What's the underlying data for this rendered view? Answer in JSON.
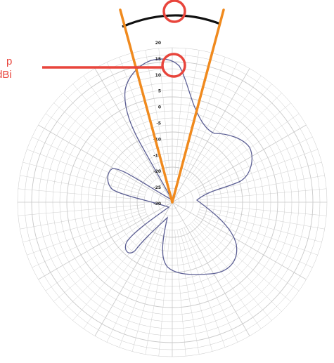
{
  "callout": {
    "line1": "p",
    "line2": "dBi"
  },
  "radial_ticks": [
    "20",
    "15",
    "10",
    "5",
    "0",
    "-5",
    "-10",
    "-15",
    "-20",
    "-25",
    "-30"
  ],
  "colors": {
    "beam_lines": "#f08a1e",
    "callout": "#e8453c",
    "arc": "#111111",
    "pattern": "#5c5f94",
    "grid": "#c9c9c9"
  }
}
